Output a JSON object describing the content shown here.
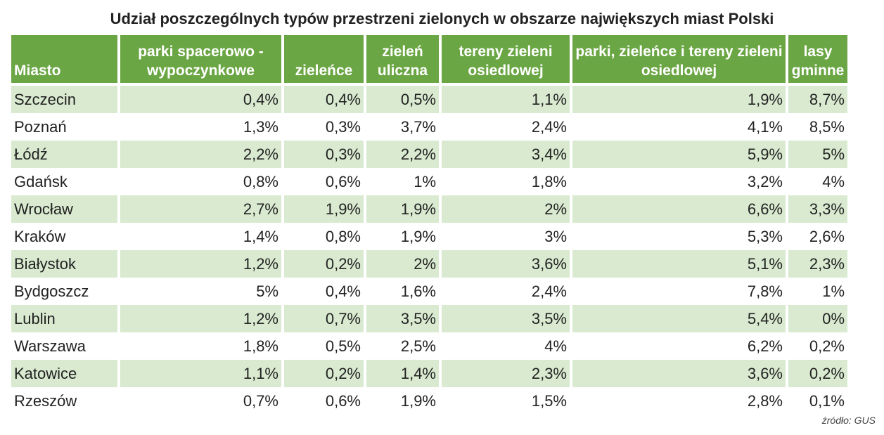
{
  "chart_data": {
    "type": "table",
    "title": "Udział poszczególnych typów przestrzeni zielonych w obszarze największych miast Polski",
    "columns": [
      "Miasto",
      "parki spacerowo - wypoczynkowe",
      "zieleńce",
      "zieleń uliczna",
      "tereny zieleni osiedlowej",
      "parki, zieleńce i tereny zieleni osiedlowej",
      "lasy gminne"
    ],
    "rows": [
      [
        "Szczecin",
        "0,4%",
        "0,4%",
        "0,5%",
        "1,1%",
        "1,9%",
        "8,7%"
      ],
      [
        "Poznań",
        "1,3%",
        "0,3%",
        "3,7%",
        "2,4%",
        "4,1%",
        "8,5%"
      ],
      [
        "Łódź",
        "2,2%",
        "0,3%",
        "2,2%",
        "3,4%",
        "5,9%",
        "5%"
      ],
      [
        "Gdańsk",
        "0,8%",
        "0,6%",
        "1%",
        "1,8%",
        "3,2%",
        "4%"
      ],
      [
        "Wrocław",
        "2,7%",
        "1,9%",
        "1,9%",
        "2%",
        "6,6%",
        "3,3%"
      ],
      [
        "Kraków",
        "1,4%",
        "0,8%",
        "1,9%",
        "3%",
        "5,3%",
        "2,6%"
      ],
      [
        "Białystok",
        "1,2%",
        "0,2%",
        "2%",
        "3,6%",
        "5,1%",
        "2,3%"
      ],
      [
        "Bydgoszcz",
        "5%",
        "0,4%",
        "1,6%",
        "2,4%",
        "7,8%",
        "1%"
      ],
      [
        "Lublin",
        "1,2%",
        "0,7%",
        "3,5%",
        "3,5%",
        "5,4%",
        "0%"
      ],
      [
        "Warszawa",
        "1,8%",
        "0,5%",
        "2,5%",
        "4%",
        "6,2%",
        "0,2%"
      ],
      [
        "Katowice",
        "1,1%",
        "0,2%",
        "1,4%",
        "2,3%",
        "3,6%",
        "0,2%"
      ],
      [
        "Rzeszów",
        "0,7%",
        "0,6%",
        "1,9%",
        "1,5%",
        "2,8%",
        "0,1%"
      ]
    ],
    "source": "źródło: GUS",
    "colors": {
      "header": "#6ba644",
      "stripe": "#d9ead0"
    }
  }
}
